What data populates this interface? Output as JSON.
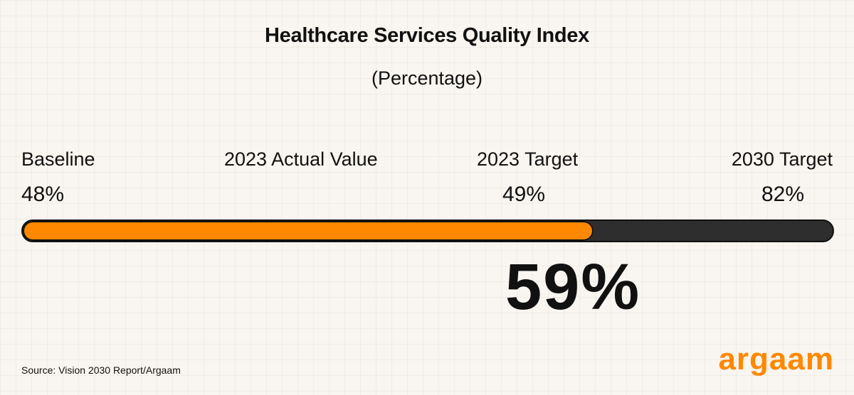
{
  "title": "Healthcare Services Quality Index",
  "subtitle": "(Percentage)",
  "labels": {
    "baseline": "Baseline",
    "actual_2023": "2023 Actual Value",
    "target_2023": "2023 Target",
    "target_2030": "2030 Target"
  },
  "values": {
    "baseline": "48%",
    "target_2023": "49%",
    "target_2030": "82%",
    "actual_2023": "59%"
  },
  "source": "Source: Vision 2030 Report/Argaam",
  "logo_text": "argaam",
  "colors": {
    "accent": "#ff8800",
    "track": "#2e2e2e",
    "background": "#f9f5f0"
  },
  "chart_data": {
    "type": "bar",
    "categories": [
      "Baseline",
      "2023 Actual Value",
      "2023 Target",
      "2030 Target"
    ],
    "values": [
      48,
      59,
      49,
      82
    ],
    "progress_fraction": 0.705
  }
}
